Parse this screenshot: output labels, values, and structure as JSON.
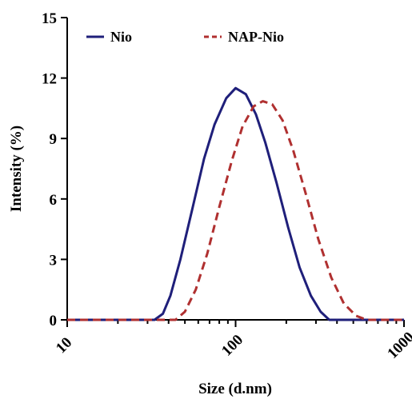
{
  "chart_data": {
    "type": "line",
    "xlabel": "Size (d.nm)",
    "ylabel": "Intensity (%)",
    "xscale": "log",
    "xlim": [
      10,
      1000
    ],
    "ylim": [
      0,
      15
    ],
    "xticks": [
      "10",
      "100",
      "1000"
    ],
    "yticks": [
      "0",
      "3",
      "6",
      "9",
      "12",
      "15"
    ],
    "legend_position": "top",
    "series": [
      {
        "name": "Nio",
        "color": "#1f1f7a",
        "style": "solid",
        "points": [
          [
            10,
            0
          ],
          [
            33,
            0
          ],
          [
            37,
            0.3
          ],
          [
            41,
            1.2
          ],
          [
            47,
            3.0
          ],
          [
            55,
            5.4
          ],
          [
            65,
            8.0
          ],
          [
            75,
            9.7
          ],
          [
            88,
            11.0
          ],
          [
            100,
            11.5
          ],
          [
            115,
            11.2
          ],
          [
            132,
            10.2
          ],
          [
            150,
            8.8
          ],
          [
            175,
            6.8
          ],
          [
            205,
            4.6
          ],
          [
            240,
            2.6
          ],
          [
            280,
            1.2
          ],
          [
            320,
            0.4
          ],
          [
            360,
            0
          ],
          [
            1000,
            0
          ]
        ]
      },
      {
        "name": "NAP-Nio",
        "color": "#b03030",
        "style": "dashed",
        "points": [
          [
            10,
            0
          ],
          [
            44,
            0
          ],
          [
            50,
            0.4
          ],
          [
            58,
            1.5
          ],
          [
            68,
            3.3
          ],
          [
            80,
            5.6
          ],
          [
            95,
            7.9
          ],
          [
            110,
            9.6
          ],
          [
            128,
            10.6
          ],
          [
            145,
            10.85
          ],
          [
            165,
            10.7
          ],
          [
            190,
            9.9
          ],
          [
            220,
            8.4
          ],
          [
            260,
            6.3
          ],
          [
            310,
            4.0
          ],
          [
            370,
            2.1
          ],
          [
            440,
            0.8
          ],
          [
            520,
            0.2
          ],
          [
            600,
            0
          ],
          [
            1000,
            0
          ]
        ]
      }
    ]
  }
}
